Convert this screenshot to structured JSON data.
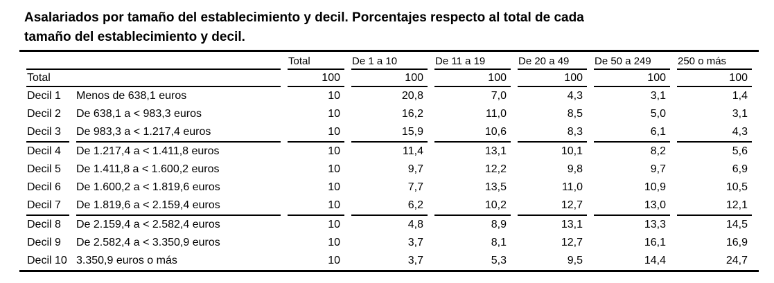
{
  "title": {
    "line1": "Asalariados por tamaño del establecimiento y decil. Porcentajes respecto al total de cada",
    "line2": "tamaño del establecimiento y decil."
  },
  "table": {
    "column_headers": [
      "Total",
      "De 1 a 10",
      "De 11 a 19",
      "De 20 a 49",
      "De 50 a 249",
      "250 o más"
    ],
    "total_row": {
      "label": "Total",
      "values": [
        "100",
        "100",
        "100",
        "100",
        "100",
        "100"
      ]
    },
    "rows": [
      {
        "label": "Decil 1",
        "range": "Menos de 638,1 euros",
        "values": [
          "10",
          "20,8",
          "7,0",
          "4,3",
          "3,1",
          "1,4"
        ]
      },
      {
        "label": "Decil 2",
        "range": "De 638,1 a < 983,3  euros",
        "values": [
          "10",
          "16,2",
          "11,0",
          "8,5",
          "5,0",
          "3,1"
        ]
      },
      {
        "label": "Decil 3",
        "range": "De 983,3 a < 1.217,4  euros",
        "values": [
          "10",
          "15,9",
          "10,6",
          "8,3",
          "6,1",
          "4,3"
        ]
      },
      {
        "label": "Decil 4",
        "range": "De 1.217,4 a < 1.411,8  euros",
        "values": [
          "10",
          "11,4",
          "13,1",
          "10,1",
          "8,2",
          "5,6"
        ]
      },
      {
        "label": "Decil 5",
        "range": "De 1.411,8 a < 1.600,2  euros",
        "values": [
          "10",
          "9,7",
          "12,2",
          "9,8",
          "9,7",
          "6,9"
        ]
      },
      {
        "label": "Decil 6",
        "range": "De 1.600,2 a < 1.819,6  euros",
        "values": [
          "10",
          "7,7",
          "13,5",
          "11,0",
          "10,9",
          "10,5"
        ]
      },
      {
        "label": "Decil 7",
        "range": "De 1.819,6 a < 2.159,4  euros",
        "values": [
          "10",
          "6,2",
          "10,2",
          "12,7",
          "13,0",
          "12,1"
        ]
      },
      {
        "label": "Decil 8",
        "range": "De 2.159,4 a < 2.582,4  euros",
        "values": [
          "10",
          "4,8",
          "8,9",
          "13,1",
          "13,3",
          "14,5"
        ]
      },
      {
        "label": "Decil 9",
        "range": "De 2.582,4 a < 3.350,9  euros",
        "values": [
          "10",
          "3,7",
          "8,1",
          "12,7",
          "16,1",
          "16,9"
        ]
      },
      {
        "label": "Decil 10",
        "range": "3.350,9  euros o más",
        "values": [
          "10",
          "3,7",
          "5,3",
          "9,5",
          "14,4",
          "24,7"
        ]
      }
    ]
  },
  "colors": {
    "text": "#000000",
    "background": "#ffffff",
    "rule": "#000000"
  }
}
